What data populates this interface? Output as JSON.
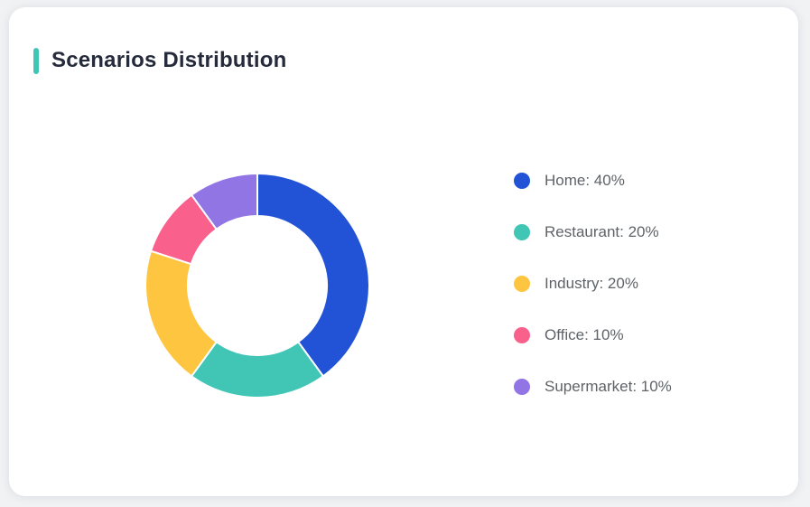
{
  "card": {
    "accent_color": "#3fc6b7"
  },
  "chart_data": {
    "type": "pie",
    "donut": true,
    "title": "Scenarios Distribution",
    "categories": [
      "Home",
      "Restaurant",
      "Industry",
      "Office",
      "Supermarket"
    ],
    "values": [
      40,
      20,
      20,
      10,
      10
    ],
    "unit": "%",
    "colors": [
      "#2253d6",
      "#41c6b6",
      "#fec540",
      "#f9618c",
      "#9175e5"
    ],
    "inner_radius_ratio": 0.62,
    "start_angle_deg": 0,
    "direction": "clockwise",
    "legend_position": "right",
    "slice_gap_color": "#ffffff"
  },
  "legend": {
    "items": [
      {
        "label": "Home: 40%"
      },
      {
        "label": "Restaurant: 20%"
      },
      {
        "label": "Industry: 20%"
      },
      {
        "label": "Office: 10%"
      },
      {
        "label": "Supermarket: 10%"
      }
    ]
  }
}
